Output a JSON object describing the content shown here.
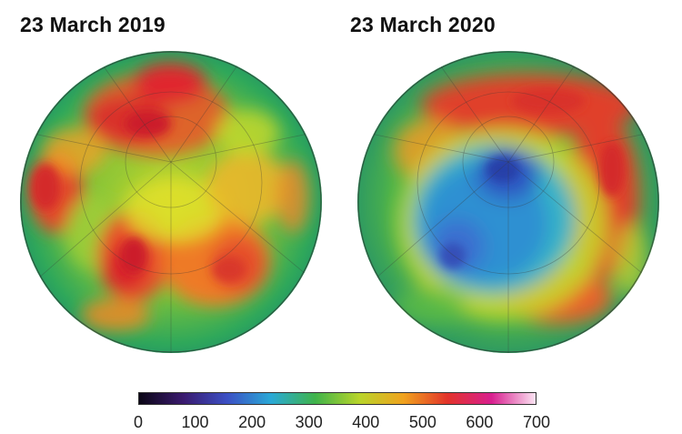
{
  "panels": [
    {
      "title": "23 March 2019"
    },
    {
      "title": "23 March 2020"
    }
  ],
  "colorbar": {
    "ticks": [
      "0",
      "100",
      "200",
      "300",
      "400",
      "500",
      "600",
      "700"
    ],
    "range": [
      0,
      700
    ],
    "colors": [
      "#0b0616",
      "#3a1a6e",
      "#3b4fc4",
      "#2aa9d6",
      "#3fb34a",
      "#b9d42a",
      "#f0a21e",
      "#e2322a",
      "#d81f8f",
      "#fbe3f2"
    ]
  }
}
